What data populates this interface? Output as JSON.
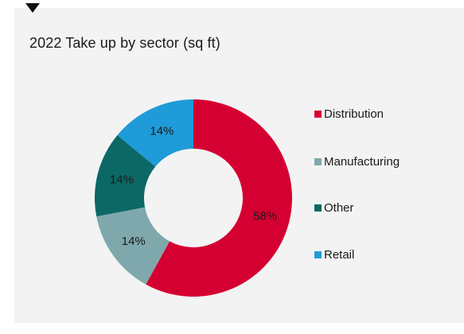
{
  "chart_data": {
    "type": "pie",
    "title": "2022 Take up by sector (sq ft)",
    "categories": [
      "Distribution",
      "Manufacturing",
      "Other",
      "Retail"
    ],
    "values": [
      58,
      14,
      14,
      14
    ],
    "value_labels": [
      "58%",
      "14%",
      "14%",
      "14%"
    ],
    "colors": [
      "#d50032",
      "#7fa8ad",
      "#0b6865",
      "#1f9bd9"
    ],
    "donut": true,
    "legend_position": "right"
  }
}
